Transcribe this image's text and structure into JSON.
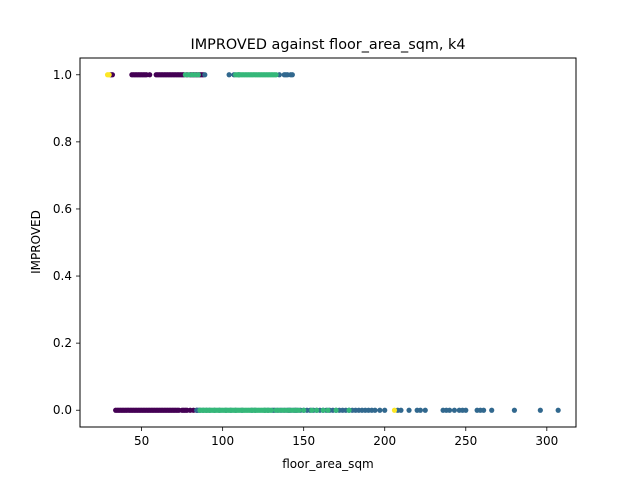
{
  "chart_data": {
    "type": "scatter",
    "title": "IMPROVED against floor_area_sqm, k4",
    "xlabel": "floor_area_sqm",
    "ylabel": "IMPROVED",
    "xlim": [
      12,
      318
    ],
    "ylim": [
      -0.05,
      1.05
    ],
    "xticks": [
      50,
      100,
      150,
      200,
      250,
      300
    ],
    "yticks": [
      0.0,
      0.2,
      0.4,
      0.6,
      0.8,
      1.0
    ],
    "ytick_labels": [
      "0.0",
      "0.2",
      "0.4",
      "0.6",
      "0.8",
      "1.0"
    ],
    "grid": false,
    "legend": "none",
    "cluster_colors": {
      "0": "#440154",
      "1": "#31688e",
      "2": "#35b779",
      "3": "#fde725"
    },
    "points": {
      "cluster_0": {
        "y1": [
          31,
          32,
          44,
          45,
          46,
          47,
          48,
          49,
          50,
          51,
          52,
          53,
          55,
          59,
          60,
          61,
          62,
          63,
          64,
          65,
          66,
          67,
          68,
          69,
          70,
          71,
          72,
          73,
          74,
          75,
          76,
          78,
          80,
          81,
          82,
          83,
          84,
          85,
          86,
          87,
          88
        ],
        "y0": [
          34,
          35,
          36,
          37,
          38,
          39,
          40,
          41,
          42,
          43,
          44,
          45,
          46,
          47,
          48,
          49,
          50,
          51,
          52,
          53,
          54,
          55,
          56,
          57,
          58,
          59,
          60,
          61,
          62,
          63,
          64,
          65,
          66,
          67,
          68,
          69,
          70,
          71,
          72,
          73,
          75,
          76,
          77,
          78,
          80,
          82,
          84
        ]
      },
      "cluster_1": {
        "y1": [
          89,
          104,
          107,
          110,
          135,
          138,
          139,
          140,
          142,
          143
        ],
        "y0": [
          84,
          85,
          86,
          88,
          90,
          92,
          95,
          98,
          102,
          105,
          108,
          112,
          118,
          120,
          126,
          128,
          131,
          132,
          134,
          136,
          138,
          140,
          141,
          142,
          144,
          145,
          146,
          148,
          150,
          152,
          154,
          156,
          158,
          160,
          162,
          164,
          166,
          168,
          170,
          172,
          174,
          176,
          178,
          180,
          182,
          184,
          186,
          188,
          190,
          192,
          194,
          197,
          200,
          208,
          210,
          215,
          220,
          222,
          225,
          236,
          238,
          240,
          243,
          246,
          248,
          250,
          257,
          259,
          261,
          266,
          280,
          296,
          307
        ]
      },
      "cluster_2": {
        "y1": [
          77,
          79,
          81,
          83,
          85,
          108,
          109,
          110,
          111,
          112,
          113,
          114,
          115,
          116,
          117,
          118,
          119,
          120,
          121,
          122,
          123,
          124,
          125,
          126,
          127,
          128,
          129,
          130,
          131,
          132,
          133
        ],
        "y0": [
          86,
          87,
          88,
          89,
          90,
          91,
          92,
          93,
          94,
          95,
          96,
          97,
          98,
          99,
          100,
          101,
          102,
          103,
          104,
          105,
          106,
          107,
          108,
          109,
          110,
          111,
          112,
          113,
          114,
          115,
          116,
          117,
          118,
          119,
          120,
          121,
          122,
          123,
          124,
          125,
          126,
          127,
          128,
          129,
          130,
          133,
          135,
          137,
          139,
          141,
          143,
          145,
          147,
          150,
          155,
          158,
          162,
          165,
          170,
          178
        ]
      },
      "cluster_3": {
        "y1": [
          29,
          30
        ],
        "y0": [
          206
        ]
      }
    }
  }
}
